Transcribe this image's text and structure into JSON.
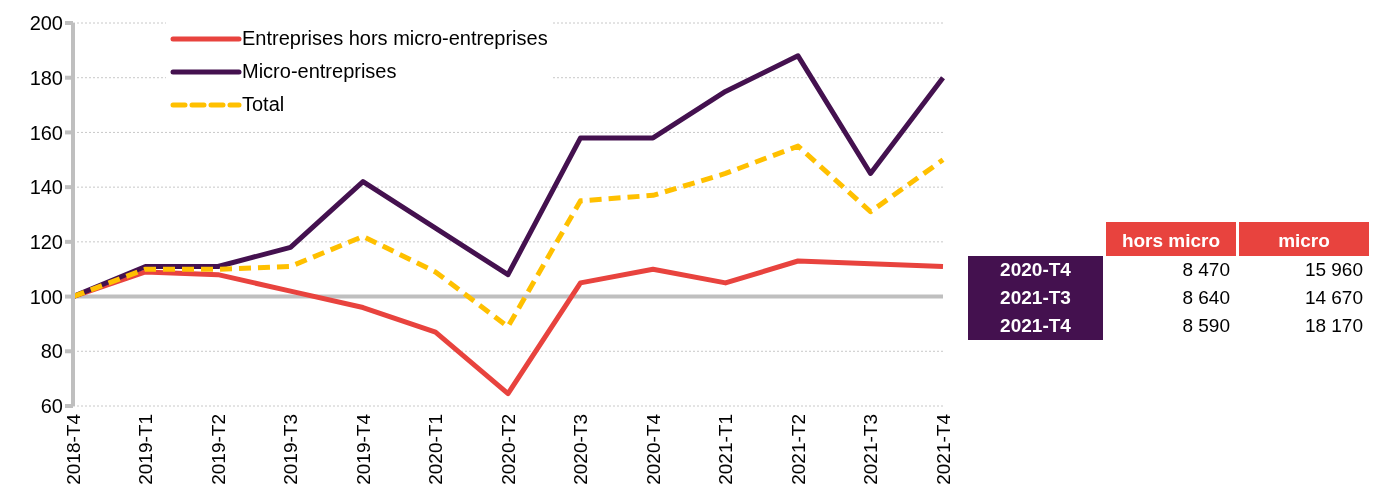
{
  "chart_data": [
    {
      "type": "line",
      "categories": [
        "2018-T4",
        "2019-T1",
        "2019-T2",
        "2019-T3",
        "2019-T4",
        "2020-T1",
        "2020-T2",
        "2020-T3",
        "2020-T4",
        "2021-T1",
        "2021-T2",
        "2021-T3",
        "2021-T4"
      ],
      "series": [
        {
          "name": "Entreprises hors micro-entreprises",
          "color": "#e8433e",
          "values": [
            100,
            109,
            108,
            102,
            96,
            87,
            64.5,
            105,
            110,
            105,
            113,
            112,
            111
          ]
        },
        {
          "name": "Micro-entreprises",
          "color": "#44114f",
          "values": [
            100,
            111,
            111,
            118,
            142,
            125,
            108,
            158,
            158,
            175,
            188,
            145,
            180
          ]
        },
        {
          "name": "Total",
          "color": "#ffc000",
          "line_style": "dashed",
          "values": [
            100,
            110,
            110,
            111,
            122,
            109,
            89,
            135,
            137,
            145,
            155,
            131,
            150
          ]
        }
      ],
      "ylim": [
        60,
        200
      ],
      "yticks": [
        60,
        80,
        100,
        120,
        140,
        160,
        180,
        200
      ],
      "grid": "y",
      "legend": "top left",
      "marker": "none",
      "ref_lines": [
        {
          "axis": "y",
          "value": 100,
          "color": "#bfbfbf"
        }
      ]
    },
    {
      "type": "other",
      "categories": [
        "2020-T4",
        "2021-T3",
        "2021-T4"
      ],
      "colors": [
        "#44114f",
        "#44114f",
        "#44114f"
      ],
      "series": [
        {
          "name": "hors micro",
          "values": [
            8470,
            8640,
            8590
          ]
        },
        {
          "name": "micro",
          "values": [
            15960,
            14670,
            18170
          ]
        }
      ],
      "data_labels": true
    }
  ]
}
